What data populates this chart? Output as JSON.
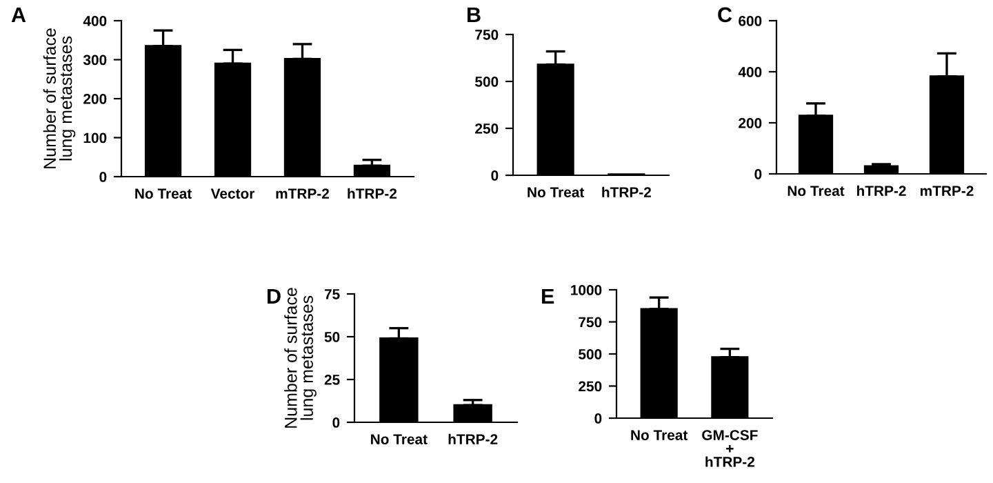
{
  "chart_data": [
    {
      "type": "bar",
      "title": "A",
      "ylabel": "Number of surface\nlung metastases",
      "categories": [
        "No Treat",
        "Vector",
        "mTRP-2",
        "hTRP-2"
      ],
      "values": [
        335,
        290,
        302,
        28
      ],
      "errors": [
        [
          335,
          375
        ],
        [
          290,
          325
        ],
        [
          302,
          340
        ],
        [
          28,
          43
        ]
      ],
      "color": "#000000",
      "ylim": [
        0,
        400
      ],
      "yticks": [
        0,
        100,
        200,
        300,
        400
      ]
    },
    {
      "type": "bar",
      "title": "B",
      "categories": [
        "No Treat",
        "hTRP-2"
      ],
      "values": [
        590,
        5
      ],
      "errors": [
        [
          590,
          660
        ],
        null
      ],
      "color": "#000000",
      "ylim": [
        0,
        750
      ],
      "yticks": [
        0,
        250,
        500,
        750
      ]
    },
    {
      "type": "bar",
      "title": "C",
      "categories": [
        "No Treat",
        "hTRP-2",
        "mTRP-2"
      ],
      "values": [
        228,
        30,
        382
      ],
      "errors": [
        [
          228,
          276
        ],
        [
          30,
          38
        ],
        [
          382,
          472
        ]
      ],
      "color": "#000000",
      "ylim": [
        0,
        600
      ],
      "yticks": [
        0,
        200,
        400,
        600
      ]
    },
    {
      "type": "bar",
      "title": "D",
      "ylabel": "Number of surface\nlung metastases",
      "categories": [
        "No Treat",
        "hTRP-2"
      ],
      "values": [
        49,
        10
      ],
      "errors": [
        [
          49,
          55
        ],
        [
          10,
          13
        ]
      ],
      "color": "#000000",
      "ylim": [
        0,
        75
      ],
      "yticks": [
        0,
        25,
        50,
        75
      ]
    },
    {
      "type": "bar",
      "title": "E",
      "categories": [
        "No Treat",
        "GM-CSF\n+\nhTRP-2"
      ],
      "values": [
        850,
        475
      ],
      "errors": [
        [
          850,
          940
        ],
        [
          475,
          540
        ]
      ],
      "color": "#000000",
      "ylim": [
        0,
        1000
      ],
      "yticks": [
        0,
        250,
        500,
        750,
        1000
      ]
    }
  ]
}
